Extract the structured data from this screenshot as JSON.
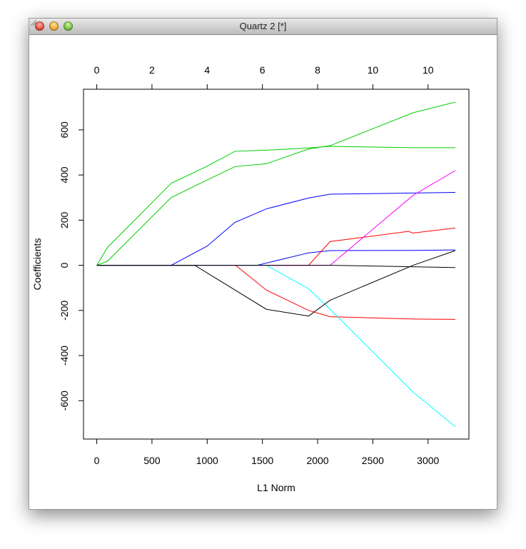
{
  "window": {
    "title": "Quartz 2 [*]"
  },
  "chart_data": {
    "type": "line",
    "xlabel": "L1 Norm",
    "ylabel": "Coefficients",
    "xlim": [
      -120,
      3370
    ],
    "ylim": [
      -770,
      780
    ],
    "x_ticks": [
      0,
      500,
      1000,
      1500,
      2000,
      2500,
      3000
    ],
    "y_ticks": [
      -600,
      -400,
      -200,
      0,
      200,
      400,
      600
    ],
    "top_axis": {
      "ticks_at": [
        0,
        500,
        1000,
        1500,
        2000,
        2500,
        3000
      ],
      "labels": [
        "0",
        "2",
        "4",
        "6",
        "8",
        "10",
        "10"
      ]
    },
    "grid": false,
    "series": [
      {
        "color": "#00CD00",
        "points": [
          [
            0,
            0
          ],
          [
            97,
            79
          ],
          [
            674,
            363
          ],
          [
            1000,
            439
          ],
          [
            1251,
            505
          ],
          [
            1536,
            510
          ],
          [
            1918,
            520
          ],
          [
            2113,
            527
          ],
          [
            2865,
            521
          ],
          [
            3247,
            521
          ]
        ]
      },
      {
        "color": "#00CD00",
        "points": [
          [
            0,
            0
          ],
          [
            97,
            18
          ],
          [
            674,
            300
          ],
          [
            1000,
            378
          ],
          [
            1251,
            437
          ],
          [
            1536,
            450
          ],
          [
            1918,
            515
          ],
          [
            2113,
            530
          ],
          [
            2865,
            676
          ],
          [
            3247,
            723
          ]
        ]
      },
      {
        "color": "#0000FF",
        "points": [
          [
            0,
            0
          ],
          [
            674,
            0
          ],
          [
            1000,
            85
          ],
          [
            1251,
            190
          ],
          [
            1536,
            250
          ],
          [
            1918,
            298
          ],
          [
            2113,
            315
          ],
          [
            2865,
            320
          ],
          [
            3247,
            323
          ]
        ]
      },
      {
        "color": "#0000FF",
        "points": [
          [
            0,
            0
          ],
          [
            1452,
            0
          ],
          [
            1918,
            55
          ],
          [
            2113,
            65
          ],
          [
            2865,
            66
          ],
          [
            3247,
            68
          ]
        ]
      },
      {
        "color": "#FF0000",
        "points": [
          [
            0,
            0
          ],
          [
            1918,
            0
          ],
          [
            2113,
            105
          ],
          [
            2820,
            150
          ],
          [
            2865,
            143
          ],
          [
            3247,
            165
          ]
        ]
      },
      {
        "color": "#FF0000",
        "points": [
          [
            0,
            0
          ],
          [
            1257,
            0
          ],
          [
            1536,
            -110
          ],
          [
            1918,
            -200
          ],
          [
            2113,
            -228
          ],
          [
            2865,
            -238
          ],
          [
            3247,
            -240
          ]
        ]
      },
      {
        "color": "#FF00FF",
        "points": [
          [
            0,
            0
          ],
          [
            2113,
            0
          ],
          [
            2865,
            310
          ],
          [
            3247,
            420
          ]
        ]
      },
      {
        "color": "#00FFFF",
        "points": [
          [
            0,
            0
          ],
          [
            1536,
            0
          ],
          [
            1918,
            -104
          ],
          [
            2113,
            -195
          ],
          [
            2865,
            -562
          ],
          [
            3247,
            -715
          ]
        ]
      },
      {
        "color": "#000000",
        "points": [
          [
            0,
            0
          ],
          [
            887,
            0
          ],
          [
            1536,
            -195
          ],
          [
            1918,
            -225
          ],
          [
            2113,
            -155
          ],
          [
            2865,
            0
          ],
          [
            3247,
            65
          ]
        ]
      },
      {
        "color": "#000000",
        "points": [
          [
            0,
            0
          ],
          [
            2113,
            0
          ],
          [
            3247,
            -10
          ]
        ]
      }
    ]
  }
}
